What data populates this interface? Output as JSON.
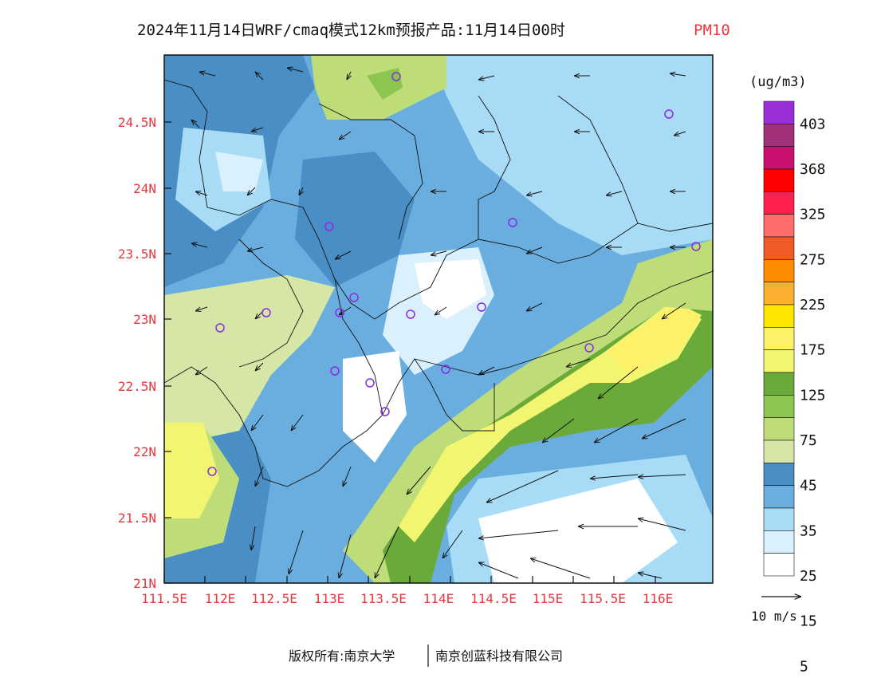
{
  "title": {
    "main": "2024年11月14日WRF/cmaq模式12km预报产品:11月14日00时",
    "variable": "PM10"
  },
  "map": {
    "lon_labels": [
      "111.5E",
      "112E",
      "112.5E",
      "113E",
      "113.5E",
      "114E",
      "114.5E",
      "115E",
      "115.5E",
      "116E"
    ],
    "lat_labels": [
      "24.5N",
      "24N",
      "23.5N",
      "23N",
      "22.5N",
      "22N",
      "21.5N",
      "21N"
    ],
    "lon_range": [
      111.5,
      116.5
    ],
    "lat_range": [
      21,
      25
    ],
    "background_color": "#6aaee0",
    "label_color": "#e8363c"
  },
  "legend": {
    "unit": "(ug/m3)",
    "levels": [
      "403",
      "368",
      "325",
      "275",
      "225",
      "175",
      "125",
      "75",
      "45",
      "35",
      "25",
      "15",
      "5"
    ],
    "colors": [
      "#9b2fd6",
      "#a0307a",
      "#c8106e",
      "#ff0000",
      "#ff2050",
      "#ff6a6a",
      "#f05a28",
      "#ff8c00",
      "#fbb030",
      "#ffe600",
      "#fff06a",
      "#f2f570",
      "#6aaa3a",
      "#8cc650",
      "#bedd78",
      "#d6e6a6",
      "#4a8ec6",
      "#6aaee0",
      "#a8dcf6",
      "#daf0fc",
      "#ffffff"
    ]
  },
  "wind_reference": {
    "label": "10 m/s"
  },
  "footer": {
    "left": "版权所有:南京大学",
    "right": "南京创蓝科技有限公司"
  }
}
